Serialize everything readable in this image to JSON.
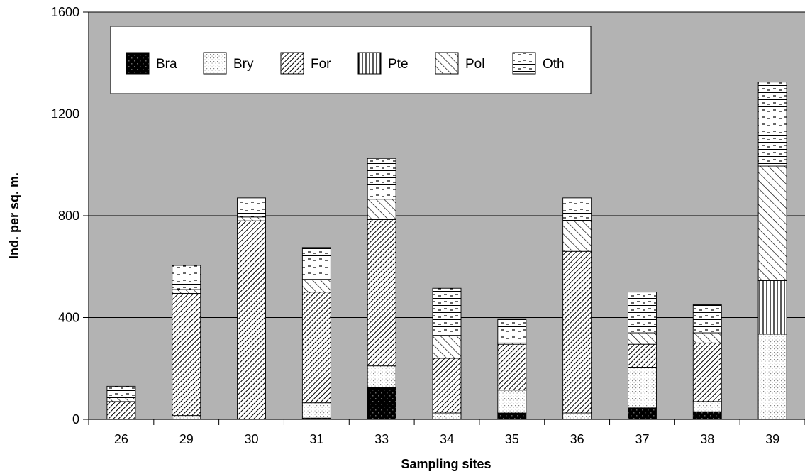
{
  "chart_data": {
    "type": "bar",
    "stacked": true,
    "xlabel": "Sampling sites",
    "ylabel": "Ind. per sq. m.",
    "ylim": [
      0,
      1600
    ],
    "yticks": [
      0,
      400,
      800,
      1200,
      1600
    ],
    "grid": true,
    "legend_position": "top-left",
    "colors": {
      "plot_background": "#b3b3b3",
      "page_background": "#ffffff",
      "gridline": "#000000"
    },
    "categories": [
      "26",
      "29",
      "30",
      "31",
      "33",
      "34",
      "35",
      "36",
      "37",
      "38",
      "39"
    ],
    "series": [
      {
        "name": "Bra",
        "pattern": "solid-black",
        "values": [
          0,
          0,
          0,
          5,
          125,
          0,
          25,
          0,
          45,
          30,
          0
        ]
      },
      {
        "name": "Bry",
        "pattern": "fine-dots",
        "values": [
          0,
          15,
          0,
          60,
          85,
          25,
          90,
          25,
          160,
          40,
          335
        ]
      },
      {
        "name": "For",
        "pattern": "dense-diagonal",
        "values": [
          70,
          480,
          780,
          435,
          575,
          215,
          180,
          635,
          90,
          230,
          0
        ]
      },
      {
        "name": "Pte",
        "pattern": "vertical-lines",
        "values": [
          0,
          0,
          0,
          0,
          0,
          0,
          0,
          0,
          0,
          0,
          210
        ]
      },
      {
        "name": "Pol",
        "pattern": "diagonal-hatch",
        "values": [
          15,
          15,
          15,
          50,
          80,
          90,
          5,
          120,
          45,
          40,
          450
        ]
      },
      {
        "name": "Oth",
        "pattern": "brick-dash",
        "values": [
          45,
          95,
          75,
          125,
          160,
          185,
          95,
          90,
          160,
          110,
          330
        ]
      }
    ]
  }
}
